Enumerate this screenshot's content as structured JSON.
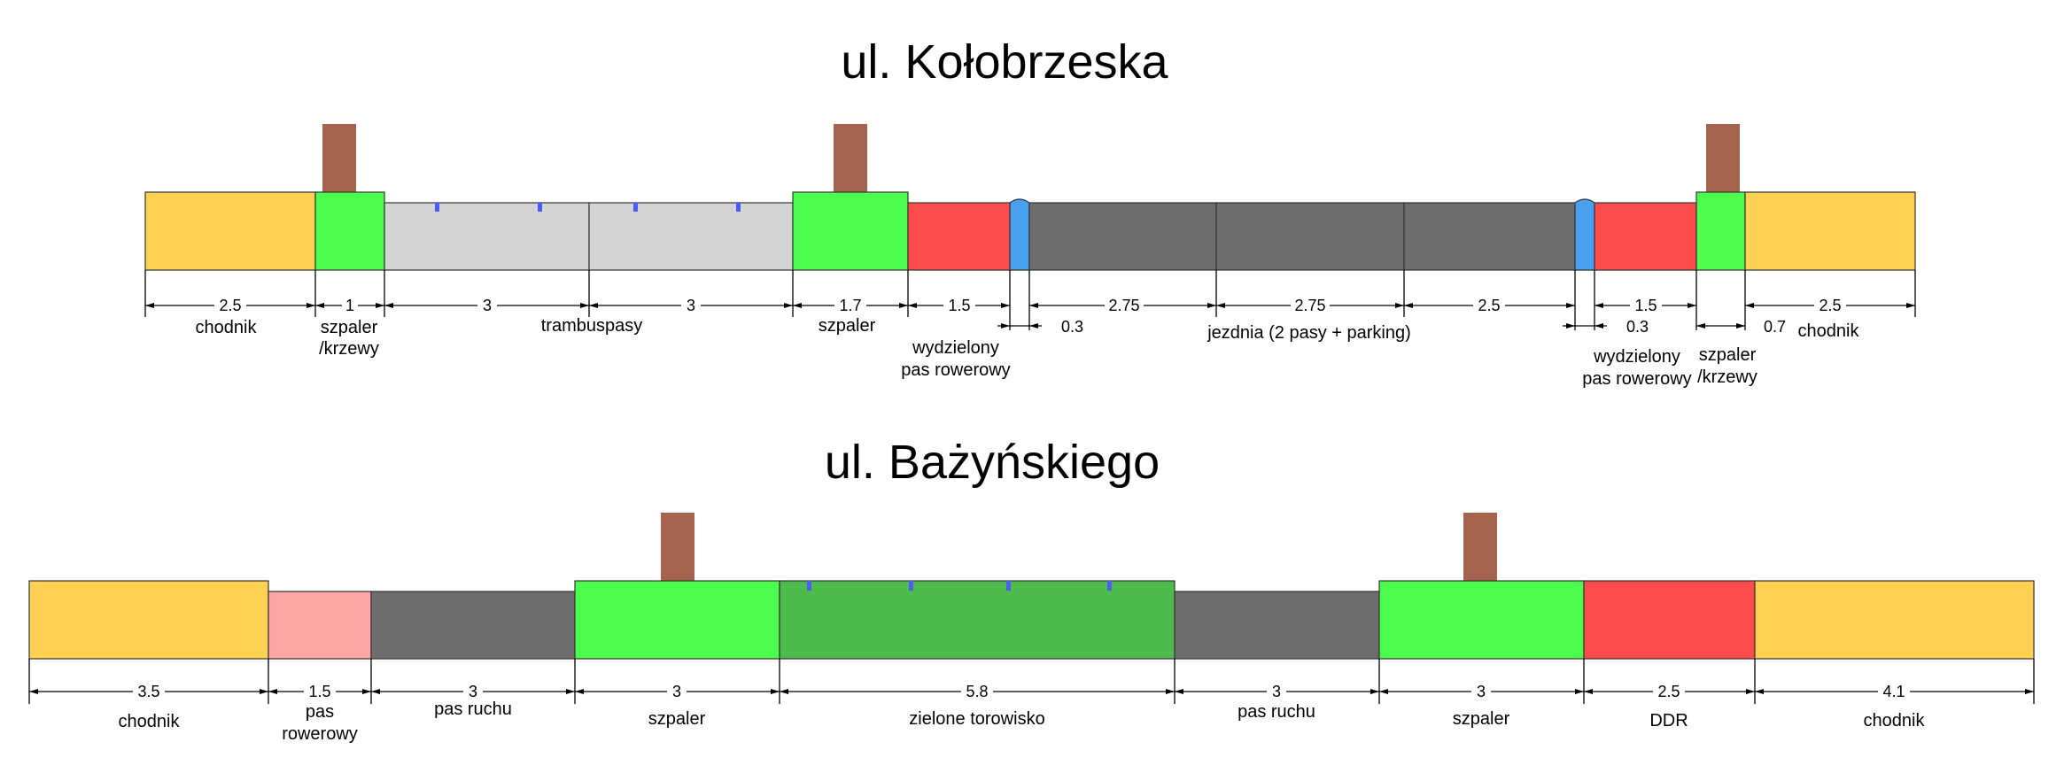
{
  "colors": {
    "sidewalk": "#fed152",
    "green_strip": "#4dfd4d",
    "tram_lane": "#d4d4d4",
    "bike_lane_red": "#fd4c4c",
    "bike_lane_pink": "#fea6a6",
    "separator_blue": "#48a0ee",
    "roadway": "#6e6e6e",
    "tree_trunk": "#a4634e",
    "green_track": "#4dbc4d",
    "rail_marker": "#4f59f8"
  },
  "sections": [
    {
      "title": "ul. Kołobrzeska",
      "segments": [
        {
          "type": "sidewalk",
          "width": 2.5,
          "dim": "2.5",
          "label": [
            "chodnik"
          ]
        },
        {
          "type": "green_strip",
          "width": 1,
          "dim": "1",
          "label": [
            "szpaler",
            "/krzewy"
          ],
          "tree": true
        },
        {
          "type": "tram_lane",
          "width": 3,
          "dim": "3",
          "label": [],
          "rails": true
        },
        {
          "type": "tram_lane",
          "width": 3,
          "dim": "3",
          "label": [],
          "rails": true
        },
        {
          "type": "green_strip",
          "width": 1.7,
          "dim": "1.7",
          "label": [
            "szpaler"
          ],
          "tree": true
        },
        {
          "type": "bike_lane_red",
          "width": 1.5,
          "dim": "1.5",
          "label": [
            "wydzielony",
            "pas rowerowy"
          ]
        },
        {
          "type": "separator_blue",
          "width": 0.3,
          "dim": "0.3",
          "label": []
        },
        {
          "type": "roadway",
          "width": 2.75,
          "dim": "2.75",
          "label": []
        },
        {
          "type": "roadway",
          "width": 2.75,
          "dim": "2.75",
          "label": []
        },
        {
          "type": "roadway",
          "width": 2.5,
          "dim": "2.5",
          "label": []
        },
        {
          "type": "separator_blue",
          "width": 0.3,
          "dim": "0.3",
          "label": []
        },
        {
          "type": "bike_lane_red",
          "width": 1.5,
          "dim": "1.5",
          "label": [
            "wydzielony",
            "pas rowerowy"
          ]
        },
        {
          "type": "green_strip",
          "width": 0.7,
          "dim": "0.7",
          "label": [
            "szpaler",
            "/krzewy"
          ],
          "tree": true
        },
        {
          "type": "sidewalk",
          "width": 2.5,
          "dim": "2.5",
          "label": [
            "chodnik"
          ]
        }
      ],
      "group_labels": [
        "trambuspasy",
        "jezdnia (2 pasy + parking)"
      ]
    },
    {
      "title": "ul. Bażyńskiego",
      "segments": [
        {
          "type": "sidewalk",
          "width": 3.5,
          "dim": "3.5",
          "label": [
            "chodnik"
          ]
        },
        {
          "type": "bike_lane_pink",
          "width": 1.5,
          "dim": "1.5",
          "label": [
            "pas",
            "rowerowy"
          ]
        },
        {
          "type": "roadway",
          "width": 3,
          "dim": "3",
          "label": [
            "pas ruchu"
          ]
        },
        {
          "type": "green_strip",
          "width": 3,
          "dim": "3",
          "label": [
            "szpaler"
          ],
          "tree": true
        },
        {
          "type": "green_track",
          "width": 5.8,
          "dim": "5.8",
          "label": [
            "zielone torowisko"
          ],
          "rails": true
        },
        {
          "type": "roadway",
          "width": 3,
          "dim": "3",
          "label": [
            "pas ruchu"
          ]
        },
        {
          "type": "green_strip",
          "width": 3,
          "dim": "3",
          "label": [
            "szpaler"
          ],
          "tree": true
        },
        {
          "type": "bike_lane_red",
          "width": 2.5,
          "dim": "2.5",
          "label": [
            "DDR"
          ]
        },
        {
          "type": "sidewalk",
          "width": 4.1,
          "dim": "4.1",
          "label": [
            "chodnik"
          ]
        }
      ]
    }
  ]
}
